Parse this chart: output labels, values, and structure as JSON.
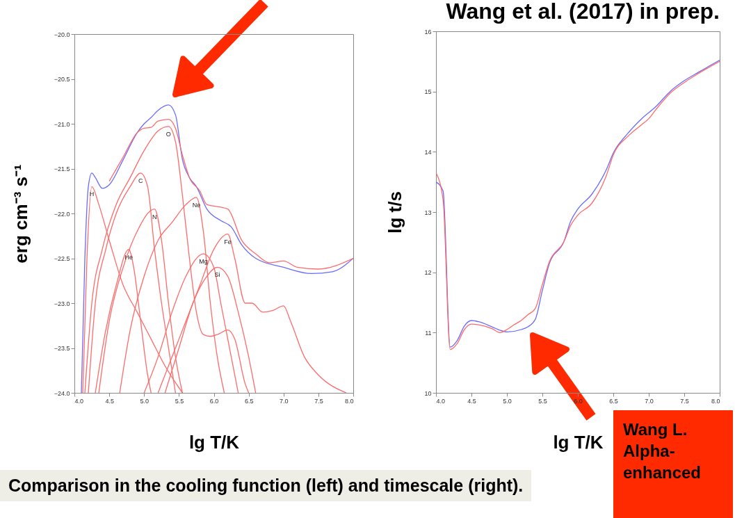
{
  "chart_data": [
    {
      "type": "line",
      "xlabel": "lg T/K",
      "ylabel": "erg cm⁻³ s⁻¹",
      "xlim": [
        4,
        8
      ],
      "ylim": [
        -24,
        -20
      ],
      "xticks": [
        {
          "value": 4,
          "label": "4.0"
        },
        {
          "value": 4.5,
          "label": "4.5"
        },
        {
          "value": 5,
          "label": "5.0"
        },
        {
          "value": 5.5,
          "label": "5.5"
        },
        {
          "value": 6,
          "label": "6.0"
        },
        {
          "value": 6.5,
          "label": "6.5"
        },
        {
          "value": 7,
          "label": "7.0"
        },
        {
          "value": 7.5,
          "label": "7.5"
        },
        {
          "value": 8,
          "label": "8.0"
        }
      ],
      "yticks": [
        {
          "value": -24,
          "label": "−24.0"
        },
        {
          "value": -23.5,
          "label": "−23.5"
        },
        {
          "value": -23,
          "label": "−23.0"
        },
        {
          "value": -22.5,
          "label": "−22.5"
        },
        {
          "value": -22,
          "label": "−22.0"
        },
        {
          "value": -21.5,
          "label": "−21.5"
        },
        {
          "value": -21,
          "label": "−21.0"
        },
        {
          "value": -20.5,
          "label": "−20.5"
        },
        {
          "value": -20,
          "label": "−20.0"
        }
      ],
      "series": [
        {
          "color": "#6a6aff",
          "x": [
            4.1,
            4.15,
            4.2,
            4.25,
            4.3,
            4.4,
            4.5,
            4.7,
            4.9,
            5.0,
            5.1,
            5.2,
            5.35,
            5.45,
            5.55,
            5.65,
            5.75,
            5.9,
            6.1,
            6.25,
            6.4,
            6.6,
            7.0,
            7.4,
            7.7,
            8.0
          ],
          "values": [
            -24,
            -22.5,
            -21.7,
            -21.55,
            -21.6,
            -21.72,
            -21.68,
            -21.4,
            -21.1,
            -21.0,
            -20.93,
            -20.85,
            -20.79,
            -20.9,
            -21.4,
            -21.6,
            -21.7,
            -21.95,
            -22.08,
            -22.15,
            -22.35,
            -22.5,
            -22.6,
            -22.67,
            -22.65,
            -22.5
          ]
        },
        {
          "color": "#ff6a6a",
          "x": [
            4.5,
            4.7,
            4.9,
            5.0,
            5.1,
            5.2,
            5.35,
            5.45,
            5.55,
            5.65,
            5.8,
            5.9,
            6.1,
            6.2,
            6.4,
            6.6,
            6.8,
            7.0,
            7.2,
            7.5,
            8.0
          ],
          "values": [
            -21.64,
            -21.37,
            -21.1,
            -21.05,
            -21.04,
            -20.97,
            -20.95,
            -21.05,
            -21.35,
            -21.6,
            -21.75,
            -21.9,
            -21.93,
            -21.95,
            -22.3,
            -22.45,
            -22.55,
            -22.53,
            -22.6,
            -22.62,
            -22.5
          ]
        },
        {
          "color": "#ff6a6a",
          "x": [
            4.12,
            4.18,
            4.25,
            4.35,
            4.5,
            4.7,
            4.9,
            5.1,
            5.3,
            5.55
          ],
          "values": [
            -24,
            -22.5,
            -21.7,
            -21.9,
            -22.3,
            -22.8,
            -23.1,
            -23.4,
            -23.7,
            -24
          ]
        },
        {
          "color": "#ff6a6a",
          "x": [
            4.3,
            4.45,
            4.6,
            4.78,
            4.85,
            4.95,
            5.05,
            5.1
          ],
          "values": [
            -24,
            -23.3,
            -22.8,
            -22.4,
            -22.6,
            -23.2,
            -23.8,
            -24
          ]
        },
        {
          "color": "#ff6a6a",
          "x": [
            4.2,
            4.3,
            4.45,
            4.6,
            4.8,
            4.95,
            5.05,
            5.15,
            5.25,
            5.35,
            5.45
          ],
          "values": [
            -24,
            -23,
            -22.4,
            -22.0,
            -21.7,
            -21.55,
            -21.7,
            -22.4,
            -23.0,
            -23.5,
            -24
          ]
        },
        {
          "color": "#ff6a6a",
          "x": [
            4.35,
            4.5,
            4.7,
            4.9,
            5.15,
            5.25,
            5.35,
            5.45,
            5.55
          ],
          "values": [
            -24,
            -23.2,
            -22.6,
            -22.2,
            -21.95,
            -22.3,
            -23.0,
            -23.6,
            -24
          ]
        },
        {
          "color": "#ff6a6a",
          "x": [
            4.15,
            4.25,
            4.4,
            4.6,
            4.8,
            5.0,
            5.2,
            5.35,
            5.45,
            5.55,
            5.65,
            5.75,
            5.85,
            5.95,
            6.05,
            6.2,
            6.3,
            6.45,
            6.5
          ],
          "values": [
            -24,
            -23,
            -22.4,
            -21.9,
            -21.6,
            -21.3,
            -21.08,
            -21.03,
            -21.2,
            -21.8,
            -22.5,
            -23.1,
            -23.35,
            -23.37,
            -23.35,
            -23.3,
            -23.4,
            -23.9,
            -24
          ]
        },
        {
          "color": "#ff6a6a",
          "x": [
            4.65,
            4.8,
            5.0,
            5.2,
            5.4,
            5.6,
            5.75,
            5.85,
            5.95,
            6.05,
            6.15
          ],
          "values": [
            -24,
            -23.3,
            -22.7,
            -22.3,
            -22.1,
            -21.9,
            -21.82,
            -22.2,
            -23.0,
            -23.6,
            -24
          ]
        },
        {
          "color": "#ff6a6a",
          "x": [
            5.0,
            5.2,
            5.4,
            5.6,
            5.85,
            6.0,
            6.1,
            6.25,
            6.35
          ],
          "values": [
            -24,
            -23.6,
            -23.1,
            -22.7,
            -22.45,
            -22.6,
            -23.0,
            -23.6,
            -24
          ]
        },
        {
          "color": "#ff6a6a",
          "x": [
            5.3,
            5.5,
            5.7,
            5.9,
            6.05,
            6.2,
            6.35,
            6.5,
            6.6
          ],
          "values": [
            -24,
            -23.5,
            -23.0,
            -22.7,
            -22.6,
            -22.7,
            -23.1,
            -23.6,
            -24
          ]
        },
        {
          "color": "#ff6a6a",
          "x": [
            5.2,
            5.4,
            5.6,
            5.8,
            6.0,
            6.2,
            6.3,
            6.45,
            6.55,
            6.7,
            6.85,
            7.0,
            7.1,
            7.3,
            7.5,
            7.9
          ],
          "values": [
            -24,
            -23.6,
            -23.2,
            -22.8,
            -22.4,
            -22.23,
            -22.5,
            -23.0,
            -23.0,
            -23.1,
            -23.08,
            -23.03,
            -23.2,
            -23.6,
            -23.8,
            -24
          ]
        }
      ],
      "annotations": [
        {
          "text": "H",
          "x": 4.25,
          "y": -21.7
        },
        {
          "text": "He",
          "x": 4.78,
          "y": -22.4
        },
        {
          "text": "C",
          "x": 4.95,
          "y": -21.55
        },
        {
          "text": "N",
          "x": 5.15,
          "y": -21.95
        },
        {
          "text": "O",
          "x": 5.35,
          "y": -21.03
        },
        {
          "text": "Ne",
          "x": 5.75,
          "y": -21.82
        },
        {
          "text": "Mg",
          "x": 5.85,
          "y": -22.45
        },
        {
          "text": "Si",
          "x": 6.05,
          "y": -22.6
        },
        {
          "text": "Fe",
          "x": 6.2,
          "y": -22.23
        },
        "Comparison in the cooling function (left) and timescale (right)."
      ]
    },
    {
      "type": "line",
      "title": "Wang et al. (2017) in prep.",
      "xlabel": "lg T/K",
      "ylabel": "lg t/s",
      "xlim": [
        4,
        8
      ],
      "ylim": [
        10,
        16
      ],
      "xticks": [
        {
          "value": 4,
          "label": "4.0"
        },
        {
          "value": 4.5,
          "label": "4.5"
        },
        {
          "value": 5,
          "label": "5.0"
        },
        {
          "value": 5.5,
          "label": "5.5"
        },
        {
          "value": 6,
          "label": "6.0"
        },
        {
          "value": 6.5,
          "label": "6.5"
        },
        {
          "value": 7,
          "label": "7.0"
        },
        {
          "value": 7.5,
          "label": "7.5"
        },
        {
          "value": 8,
          "label": "8.0"
        }
      ],
      "yticks": [
        10,
        11,
        12,
        13,
        14,
        15,
        16
      ],
      "series": [
        {
          "color": "#6a6aff",
          "x": [
            4.0,
            4.1,
            4.2,
            4.3,
            4.4,
            4.5,
            4.6,
            4.8,
            4.9,
            5.0,
            5.2,
            5.3,
            5.4,
            5.5,
            5.6,
            5.8,
            5.9,
            6.0,
            6.2,
            6.4,
            6.5,
            6.7,
            6.9,
            7.1,
            7.3,
            7.5,
            7.7,
            8.0
          ],
          "values": [
            13.5,
            13.35,
            10.76,
            10.87,
            11.11,
            11.2,
            11.18,
            11.09,
            11.04,
            11.01,
            11.05,
            11.1,
            11.22,
            11.7,
            12.15,
            12.5,
            12.85,
            13.05,
            13.3,
            13.7,
            13.98,
            14.3,
            14.55,
            14.75,
            15.0,
            15.18,
            15.32,
            15.52
          ]
        },
        {
          "color": "#ff6a6a",
          "x": [
            4.0,
            4.1,
            4.2,
            4.3,
            4.4,
            4.5,
            4.6,
            4.8,
            4.9,
            5.0,
            5.1,
            5.2,
            5.3,
            5.4,
            5.5,
            5.6,
            5.8,
            5.9,
            6.0,
            6.2,
            6.4,
            6.5,
            6.7,
            6.9,
            7.0,
            7.1,
            7.3,
            7.5,
            7.7,
            8.0
          ],
          "values": [
            13.65,
            13.2,
            10.72,
            10.82,
            11.05,
            11.14,
            11.13,
            11.06,
            11.0,
            11.05,
            11.13,
            11.2,
            11.3,
            11.4,
            11.8,
            12.18,
            12.5,
            12.78,
            12.95,
            13.15,
            13.6,
            13.95,
            14.25,
            14.45,
            14.55,
            14.7,
            14.97,
            15.15,
            15.3,
            15.5
          ]
        }
      ],
      "annotations": [
        "Wang L. Alpha-enhanced"
      ]
    }
  ]
}
